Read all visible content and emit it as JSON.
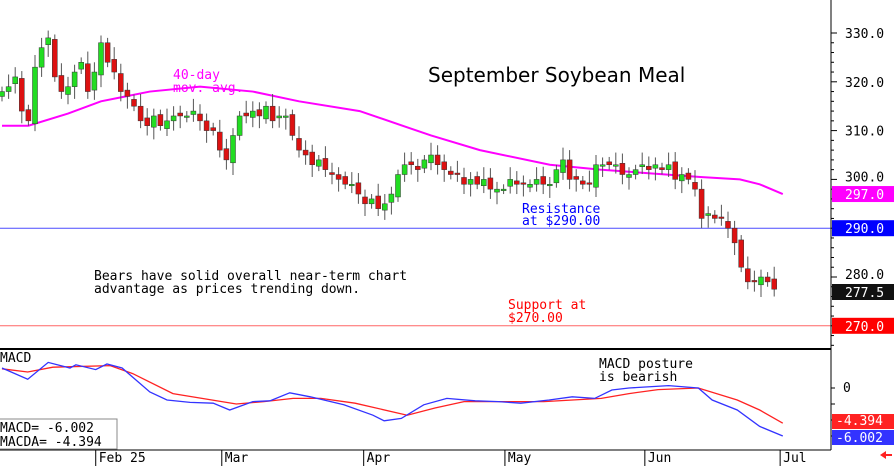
{
  "chart_data": {
    "type": "candlestick",
    "title": "September Soybean Meal",
    "y_ticks": [
      "330.0",
      "320.0",
      "310.0",
      "300.0",
      "290.0",
      "280.0",
      "270.0"
    ],
    "ylim": [
      265,
      335
    ],
    "x_ticks": [
      {
        "label": "Feb 25",
        "index": 14.2
      },
      {
        "label": "Mar",
        "index": 33.3
      },
      {
        "label": "Apr",
        "index": 54.8
      },
      {
        "label": "May",
        "index": 76.2
      },
      {
        "label": "Jun",
        "index": 97.4
      },
      {
        "label": "Jul",
        "index": 117.9
      }
    ],
    "closes": [
      318,
      319,
      321,
      314,
      312,
      323,
      327,
      329,
      321,
      318,
      319,
      322,
      324,
      318,
      322,
      328,
      324,
      322,
      318,
      317,
      315,
      312,
      311,
      313,
      311,
      312,
      313,
      313,
      313,
      314,
      312,
      310,
      310,
      306,
      304,
      309,
      313,
      313,
      314,
      313,
      315,
      312,
      313,
      313,
      309,
      306,
      305,
      303,
      304,
      302,
      301,
      300,
      299,
      299,
      297,
      295,
      296,
      294,
      295,
      297,
      301,
      303,
      303,
      302,
      304,
      305,
      303,
      302,
      301,
      301,
      299,
      300,
      299,
      300,
      298,
      298,
      298,
      300,
      299,
      299,
      299,
      300,
      299,
      299,
      302,
      304,
      300,
      300,
      299,
      299,
      303,
      303,
      303,
      303,
      301,
      301,
      302,
      303,
      302,
      303,
      302,
      303,
      300,
      301,
      300,
      298,
      292,
      293,
      292,
      292,
      290,
      287,
      282,
      279,
      279,
      280,
      279,
      277.5
    ],
    "moving_average": {
      "label_line1": "40-day",
      "label_line2": "mov. avg.",
      "color": "#ff00ff",
      "points": [
        [
          0,
          311
        ],
        [
          4,
          311
        ],
        [
          10,
          313.5
        ],
        [
          15,
          316
        ],
        [
          22.4,
          318
        ],
        [
          30,
          319
        ],
        [
          38,
          318
        ],
        [
          45,
          316
        ],
        [
          54.2,
          314
        ],
        [
          65,
          309
        ],
        [
          72.4,
          306
        ],
        [
          83,
          303
        ],
        [
          90.6,
          302
        ],
        [
          105.8,
          300.5
        ],
        [
          111.8,
          300
        ],
        [
          114.8,
          299
        ],
        [
          118.3,
          297
        ]
      ]
    },
    "resistance": {
      "value": 290,
      "label_line1": "Resistance",
      "label_line2": "at $290.00",
      "color": "#0000ff"
    },
    "support": {
      "value": 270,
      "label_line1": "Support at",
      "label_line2": "$270.00",
      "color": "#ff0000"
    },
    "price_tags": [
      {
        "label": "297.0",
        "value": 297,
        "bg": "#ff00ff"
      },
      {
        "label": "290.0",
        "value": 290,
        "bg": "#0000ff"
      },
      {
        "label": "277.5",
        "value": 277.5,
        "bg": "#111111"
      },
      {
        "label": "270.0",
        "value": 270,
        "bg": "#ff0000"
      }
    ],
    "commentary_line1": "Bears have solid overall near-term chart",
    "commentary_line2": "advantage as prices trending down.",
    "macd": {
      "title": "MACD",
      "zero_label": "0",
      "note_line1": "MACD posture",
      "note_line2": "is bearish",
      "readout_macd": "MACD=   -6.002",
      "readout_macda": "MACDA= -4.394",
      "tag_macda": "-4.394",
      "tag_macd": "-6.002",
      "macd_value": -6.002,
      "macda_value": -4.394,
      "macd_color": "#3333ff",
      "macda_color": "#ff2222",
      "macd_series": [
        [
          0,
          2.5
        ],
        [
          3.9,
          1.1
        ],
        [
          7,
          3.2
        ],
        [
          10.3,
          2.5
        ],
        [
          11.2,
          2.9
        ],
        [
          14.2,
          2.3
        ],
        [
          15.9,
          3.0
        ],
        [
          18.2,
          2.5
        ],
        [
          22.4,
          -0.5
        ],
        [
          25,
          -1.5
        ],
        [
          28.5,
          -1.8
        ],
        [
          32,
          -1.9
        ],
        [
          34.5,
          -2.75
        ],
        [
          38,
          -1.7
        ],
        [
          40.6,
          -1.6
        ],
        [
          43.6,
          -0.6
        ],
        [
          46.7,
          -1.1
        ],
        [
          51.8,
          -2.1
        ],
        [
          56.2,
          -3.4
        ],
        [
          57.9,
          -4.1
        ],
        [
          60.5,
          -3.8
        ],
        [
          63.9,
          -2.1
        ],
        [
          67.4,
          -1.3
        ],
        [
          71.7,
          -1.6
        ],
        [
          75.2,
          -1.7
        ],
        [
          78.6,
          -1.9
        ],
        [
          82.9,
          -1.5
        ],
        [
          86.4,
          -1.1
        ],
        [
          89.8,
          -1.3
        ],
        [
          92.4,
          -0.25
        ],
        [
          95,
          0
        ],
        [
          101,
          0.3
        ],
        [
          105.5,
          0
        ],
        [
          107.6,
          -1.5
        ],
        [
          111.4,
          -2.75
        ],
        [
          114.8,
          -4.8
        ],
        [
          118.3,
          -6.0
        ]
      ],
      "macda_series": [
        [
          0,
          2.4
        ],
        [
          3.9,
          2.0
        ],
        [
          7.7,
          2.6
        ],
        [
          16.4,
          2.8
        ],
        [
          19.8,
          1.8
        ],
        [
          25.9,
          -0.7
        ],
        [
          30.3,
          -1.3
        ],
        [
          35.5,
          -2.0
        ],
        [
          39.7,
          -1.7
        ],
        [
          44.1,
          -1.3
        ],
        [
          48.3,
          -1.3
        ],
        [
          53.5,
          -1.9
        ],
        [
          61.4,
          -3.4
        ],
        [
          65.6,
          -2.5
        ],
        [
          70,
          -1.7
        ],
        [
          82.1,
          -1.7
        ],
        [
          90.8,
          -1.3
        ],
        [
          95,
          -0.7
        ],
        [
          99.4,
          -0.2
        ],
        [
          105.5,
          0
        ],
        [
          111.4,
          -1.5
        ],
        [
          114.8,
          -2.75
        ],
        [
          118.3,
          -4.4
        ]
      ]
    }
  }
}
